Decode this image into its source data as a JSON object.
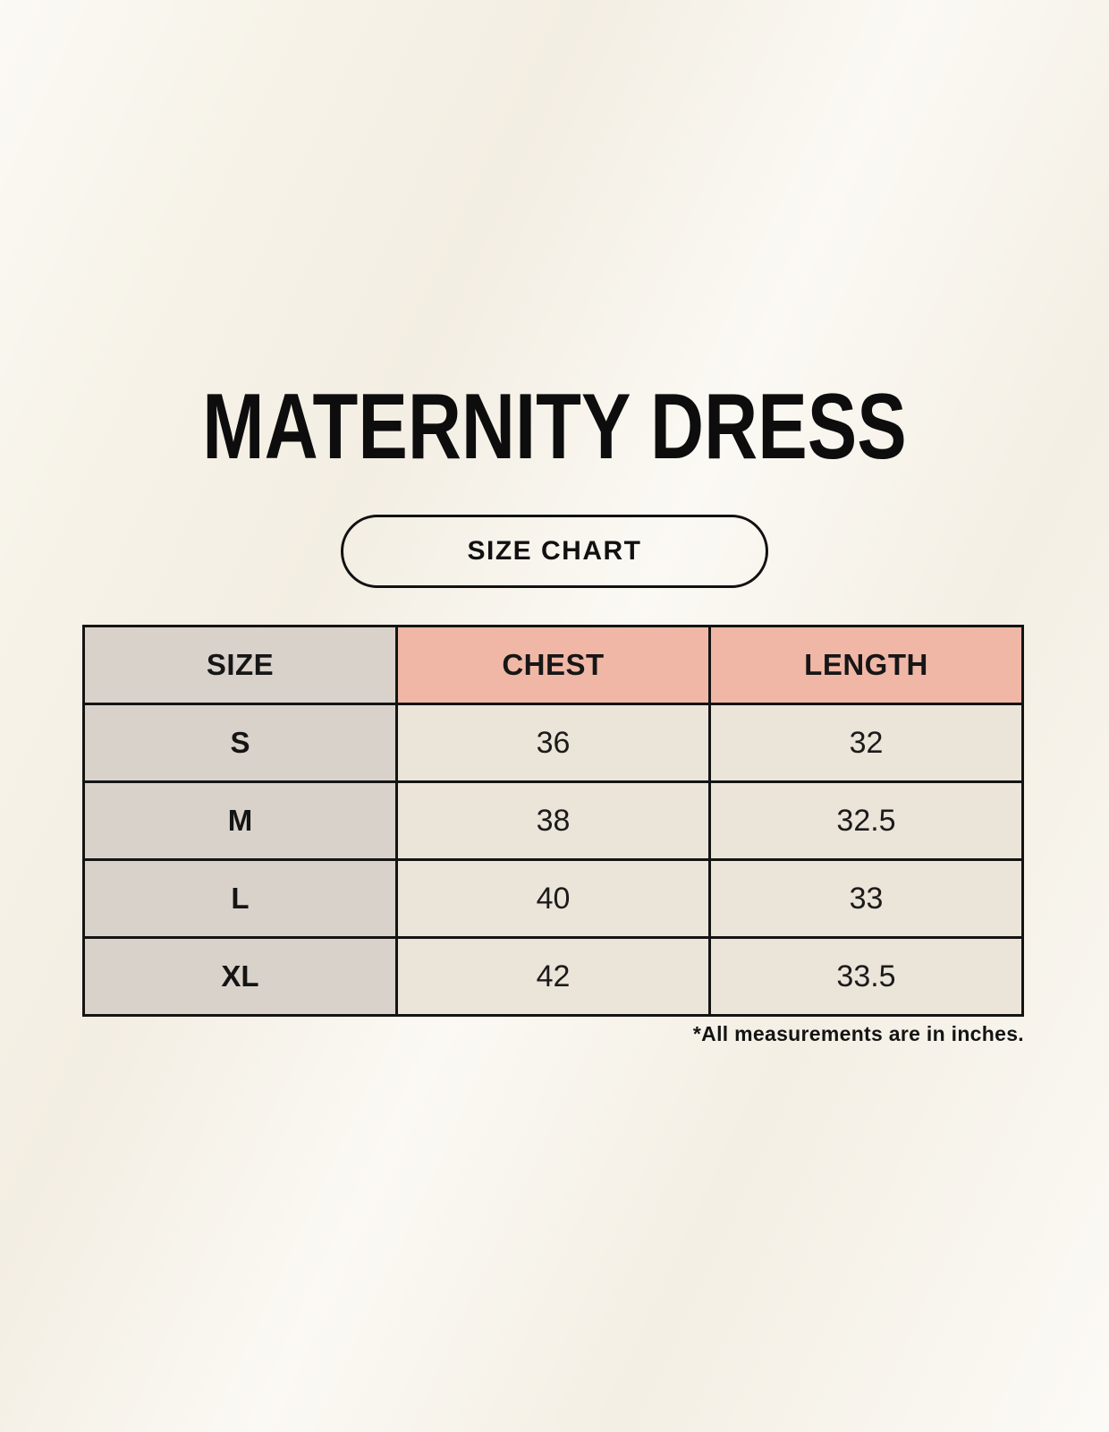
{
  "page": {
    "title": "MATERNITY DRESS",
    "size_chart_label": "SIZE CHART",
    "footnote": "*All measurements are in inches."
  },
  "colors": {
    "background": "#f7f3e9",
    "size_column_bg": "#d9d2cb",
    "header_pink_bg": "#f0b7a6",
    "value_cell_bg": "#ebe4d8",
    "border": "#141414",
    "text": "#0d0d0d"
  },
  "chart_data": {
    "type": "table",
    "title": "MATERNITY DRESS",
    "subtitle": "SIZE CHART",
    "columns": [
      "SIZE",
      "CHEST",
      "LENGTH"
    ],
    "rows": [
      [
        "S",
        "36",
        "32"
      ],
      [
        "M",
        "38",
        "32.5"
      ],
      [
        "L",
        "40",
        "33"
      ],
      [
        "XL",
        "42",
        "33.5"
      ]
    ],
    "units": "inches",
    "note": "*All measurements are in inches.",
    "layout": "3-column size chart table; first column gray, header row pink for measurement columns, value cells cream, black grid borders"
  }
}
